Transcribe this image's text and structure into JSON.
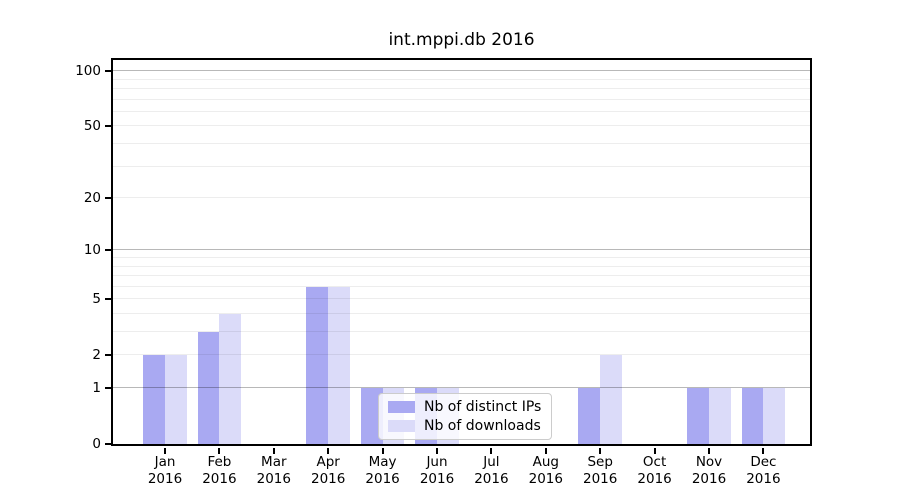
{
  "figure": {
    "background": "#ffffff"
  },
  "chart_data": {
    "type": "bar",
    "title": "int.mppi.db 2016",
    "categories": [
      {
        "month": "Jan",
        "year": "2016"
      },
      {
        "month": "Feb",
        "year": "2016"
      },
      {
        "month": "Mar",
        "year": "2016"
      },
      {
        "month": "Apr",
        "year": "2016"
      },
      {
        "month": "May",
        "year": "2016"
      },
      {
        "month": "Jun",
        "year": "2016"
      },
      {
        "month": "Jul",
        "year": "2016"
      },
      {
        "month": "Aug",
        "year": "2016"
      },
      {
        "month": "Sep",
        "year": "2016"
      },
      {
        "month": "Oct",
        "year": "2016"
      },
      {
        "month": "Nov",
        "year": "2016"
      },
      {
        "month": "Dec",
        "year": "2016"
      }
    ],
    "series": [
      {
        "name": "Nb of distinct IPs",
        "color": "#a9a9f2",
        "values": [
          2,
          3,
          0,
          6,
          1,
          1,
          0,
          0,
          1,
          0,
          1,
          1
        ]
      },
      {
        "name": "Nb of downloads",
        "color": "#dbdbf9",
        "values": [
          2,
          4,
          0,
          6,
          1,
          1,
          0,
          0,
          2,
          0,
          1,
          1
        ]
      }
    ],
    "y_axis": {
      "scale": "log1p",
      "ticks": [
        0,
        1,
        2,
        5,
        10,
        20,
        50,
        100
      ],
      "range": [
        0,
        115
      ]
    },
    "grid": {
      "orientation": "horizontal",
      "minor_values": [
        2,
        3,
        4,
        5,
        6,
        7,
        8,
        9,
        20,
        30,
        40,
        50,
        60,
        70,
        80,
        90
      ],
      "major_values": [
        1,
        10,
        100
      ]
    },
    "legend": {
      "position": "lower center inside"
    }
  }
}
